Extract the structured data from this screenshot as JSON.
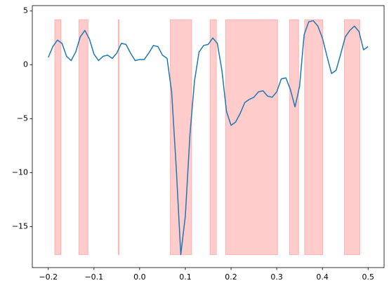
{
  "chart_data": {
    "type": "line",
    "x": [
      -0.2,
      -0.19,
      -0.18,
      -0.17,
      -0.16,
      -0.15,
      -0.14,
      -0.13,
      -0.12,
      -0.11,
      -0.1,
      -0.09,
      -0.08,
      -0.07,
      -0.06,
      -0.05,
      -0.04,
      -0.03,
      -0.02,
      -0.01,
      0,
      0.01,
      0.02,
      0.03,
      0.04,
      0.05,
      0.06,
      0.07,
      0.08,
      0.09,
      0.1,
      0.11,
      0.12,
      0.13,
      0.14,
      0.15,
      0.16,
      0.17,
      0.18,
      0.19,
      0.2,
      0.21,
      0.22,
      0.23,
      0.24,
      0.25,
      0.26,
      0.27,
      0.28,
      0.29,
      0.3,
      0.31,
      0.32,
      0.33,
      0.34,
      0.35,
      0.36,
      0.37,
      0.38,
      0.39,
      0.4,
      0.41,
      0.42,
      0.43,
      0.44,
      0.45,
      0.46,
      0.47,
      0.48,
      0.49,
      0.5
    ],
    "series": [
      {
        "color": "#1f77b4",
        "values": [
          0.7,
          1.7,
          2.3,
          2.0,
          0.8,
          0.4,
          1.2,
          2.6,
          3.2,
          2.4,
          1.0,
          0.4,
          0.8,
          0.9,
          0.6,
          1.1,
          2.0,
          1.9,
          1.1,
          0.4,
          0.5,
          0.5,
          1.1,
          1.8,
          1.7,
          0.9,
          0.6,
          -2.5,
          -9.5,
          -17.6,
          -14.0,
          -6.5,
          -1.5,
          1.2,
          1.8,
          1.9,
          2.5,
          2.0,
          -0.5,
          -4.3,
          -5.6,
          -5.3,
          -4.5,
          -3.5,
          -3.2,
          -3.0,
          -2.5,
          -2.4,
          -2.9,
          -3.0,
          -2.5,
          -1.3,
          -1.2,
          -2.3,
          -3.9,
          -2.0,
          2.8,
          4.0,
          4.1,
          3.6,
          2.5,
          0.8,
          -0.8,
          -0.5,
          1.0,
          2.6,
          3.2,
          3.6,
          3.1,
          1.4,
          1.7
        ]
      }
    ],
    "spans": [
      [
        -0.186,
        -0.172
      ],
      [
        -0.133,
        -0.113
      ],
      [
        -0.047,
        -0.045
      ],
      [
        0.067,
        0.114
      ],
      [
        0.154,
        0.168
      ],
      [
        0.188,
        0.302
      ],
      [
        0.328,
        0.348
      ],
      [
        0.361,
        0.401
      ],
      [
        0.448,
        0.482
      ]
    ],
    "span_y": [
      -17.6,
      4.2
    ],
    "span_color": "#ff0000",
    "xlim": [
      -0.235,
      0.535
    ],
    "ylim": [
      -18.8,
      5.5
    ],
    "xticks": [
      {
        "value": -0.2,
        "label": "−0.2"
      },
      {
        "value": -0.1,
        "label": "−0.1"
      },
      {
        "value": 0,
        "label": "0.0"
      },
      0.1,
      0.2,
      0.3,
      0.4,
      0.5
    ],
    "yticks": [
      {
        "value": -15,
        "label": "−15"
      },
      {
        "value": -10,
        "label": "−10"
      },
      {
        "value": -5,
        "label": "−5"
      },
      0,
      5
    ]
  }
}
